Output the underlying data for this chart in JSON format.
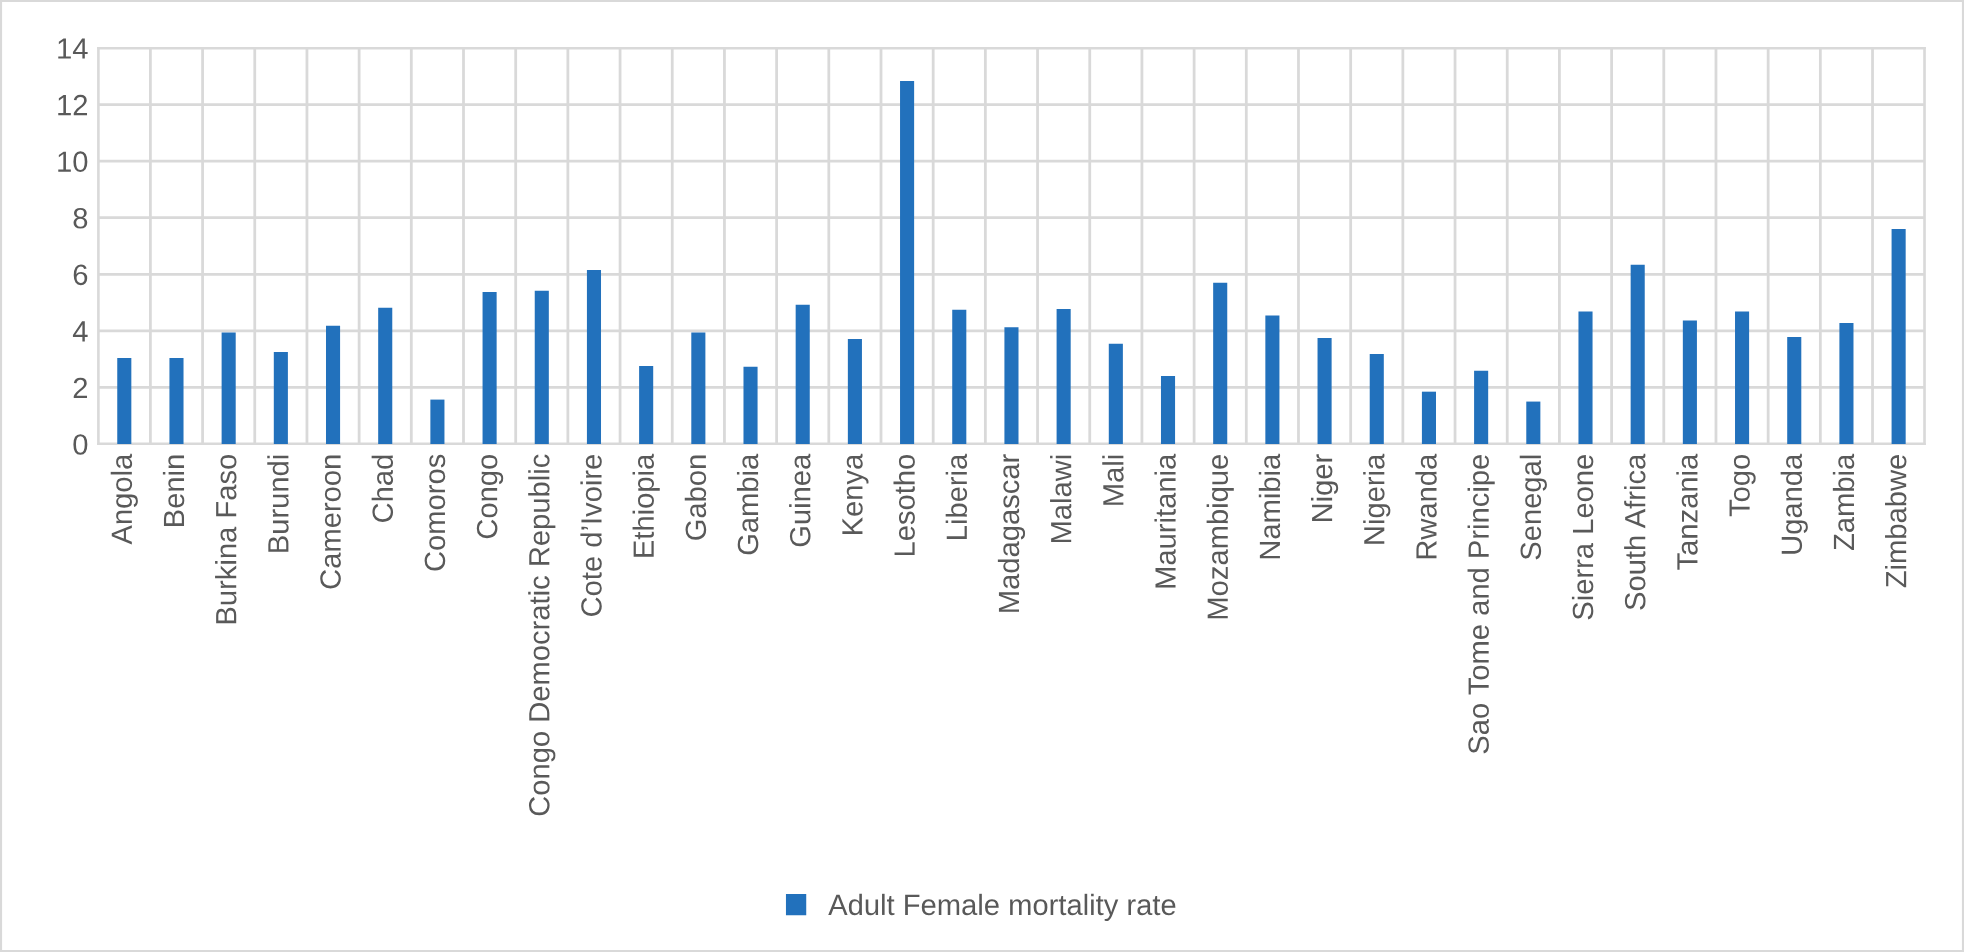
{
  "chart_data": {
    "type": "bar",
    "categories": [
      "Angola",
      "Benin",
      "Burkina Faso",
      "Burundi",
      "Cameroon",
      "Chad",
      "Comoros",
      "Congo",
      "Congo Democratic Republic",
      "Cote d’Ivoire",
      "Ethiopia",
      "Gabon",
      "Gambia",
      "Guinea",
      "Kenya",
      "Lesotho",
      "Liberia",
      "Madagascar",
      "Malawi",
      "Mali",
      "Mauritania",
      "Mozambique",
      "Namibia",
      "Niger",
      "Nigeria",
      "Rwanda",
      "Sao Tome and Principe",
      "Senegal",
      "Sierra Leone",
      "South Africa",
      "Tanzania",
      "Togo",
      "Uganda",
      "Zambia",
      "Zimbabwe"
    ],
    "series": [
      {
        "name": "Adult Female mortality rate",
        "color": "#2271bc",
        "values": [
          3.04,
          3.04,
          3.94,
          3.25,
          4.18,
          4.82,
          1.57,
          5.37,
          5.42,
          6.15,
          2.76,
          3.94,
          2.73,
          4.92,
          3.71,
          12.83,
          4.75,
          4.13,
          4.77,
          3.54,
          2.4,
          5.7,
          4.54,
          3.75,
          3.18,
          1.85,
          2.59,
          1.5,
          4.68,
          6.34,
          4.37,
          4.68,
          3.78,
          4.28,
          7.6
        ]
      }
    ],
    "ylim": [
      0,
      14
    ],
    "yticks": [
      0,
      2,
      4,
      6,
      8,
      10,
      12,
      14
    ],
    "grid": true,
    "legend": "bottom"
  }
}
